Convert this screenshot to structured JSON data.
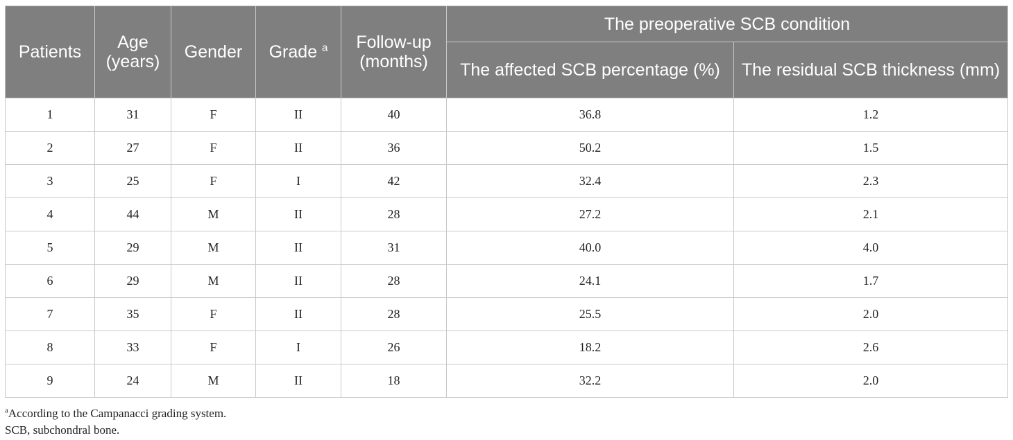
{
  "table": {
    "headers": {
      "patients": "Patients",
      "age": "Age (years)",
      "gender": "Gender",
      "grade": "Grade",
      "grade_mark": "a",
      "follow_up": "Follow-up (months)",
      "group": "The preoperative SCB condition",
      "affected_pct": "The affected SCB percentage (%)",
      "residual_thickness": "The residual SCB thickness (mm)"
    },
    "rows": [
      [
        "1",
        "31",
        "F",
        "II",
        "40",
        "36.8",
        "1.2"
      ],
      [
        "2",
        "27",
        "F",
        "II",
        "36",
        "50.2",
        "1.5"
      ],
      [
        "3",
        "25",
        "F",
        "I",
        "42",
        "32.4",
        "2.3"
      ],
      [
        "4",
        "44",
        "M",
        "II",
        "28",
        "27.2",
        "2.1"
      ],
      [
        "5",
        "29",
        "M",
        "II",
        "31",
        "40.0",
        "4.0"
      ],
      [
        "6",
        "29",
        "M",
        "II",
        "28",
        "24.1",
        "1.7"
      ],
      [
        "7",
        "35",
        "F",
        "II",
        "28",
        "25.5",
        "2.0"
      ],
      [
        "8",
        "33",
        "F",
        "I",
        "26",
        "18.2",
        "2.6"
      ],
      [
        "9",
        "24",
        "M",
        "II",
        "18",
        "32.2",
        "2.0"
      ]
    ]
  },
  "footnotes": {
    "mark": "a",
    "grading": "According to the Campanacci grading system.",
    "abbreviation": "SCB, subchondral bone."
  },
  "colors": {
    "header_bg": "#7f7f7f",
    "header_text": "#ffffff",
    "grid": "#c8c8c8"
  }
}
